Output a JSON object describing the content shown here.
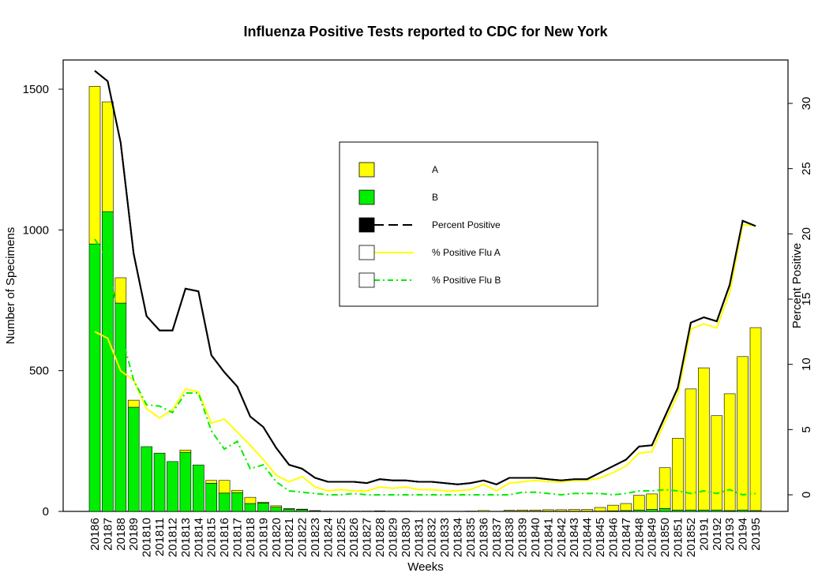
{
  "chart_data": {
    "type": "bar",
    "title": "Influenza Positive Tests reported to CDC for New York",
    "xlabel": "Weeks",
    "ylabel": "Number of Specimens",
    "y2label": "Percent Positive",
    "ylim": [
      0,
      1600
    ],
    "y2lim": [
      0,
      32.5
    ],
    "yticks": [
      0,
      500,
      1000,
      1500
    ],
    "y2ticks": [
      0,
      5,
      10,
      15,
      20,
      25,
      30
    ],
    "stacked": true,
    "categories": [
      "20186",
      "20187",
      "20188",
      "20189",
      "201810",
      "201811",
      "201812",
      "201813",
      "201814",
      "201815",
      "201816",
      "201817",
      "201818",
      "201819",
      "201820",
      "201821",
      "201822",
      "201823",
      "201824",
      "201825",
      "201826",
      "201827",
      "201828",
      "201829",
      "201830",
      "201831",
      "201832",
      "201833",
      "201834",
      "201835",
      "201836",
      "201837",
      "201838",
      "201839",
      "201840",
      "201841",
      "201842",
      "201843",
      "201844",
      "201845",
      "201846",
      "201847",
      "201848",
      "201849",
      "201850",
      "201851",
      "201852",
      "20191",
      "20192",
      "20193",
      "20194",
      "20195"
    ],
    "series": [
      {
        "name": "B",
        "color": "#00EE00",
        "type": "bar",
        "values": [
          950,
          1065,
          740,
          370,
          230,
          207,
          177,
          210,
          165,
          100,
          65,
          67,
          28,
          30,
          15,
          8,
          6,
          2,
          1,
          1,
          1,
          1,
          1,
          1,
          0,
          0,
          0,
          0,
          0,
          0,
          0,
          0,
          1,
          1,
          1,
          1,
          1,
          1,
          1,
          1,
          2,
          3,
          5,
          7,
          10,
          5,
          5,
          5,
          5,
          3,
          5,
          3
        ]
      },
      {
        "name": "A",
        "color": "#FFFF00",
        "type": "bar",
        "values": [
          560,
          390,
          90,
          25,
          0,
          0,
          0,
          8,
          0,
          10,
          45,
          8,
          22,
          3,
          5,
          2,
          2,
          1,
          0,
          0,
          0,
          0,
          1,
          0,
          1,
          0,
          0,
          0,
          0,
          1,
          3,
          0,
          3,
          4,
          4,
          5,
          5,
          6,
          6,
          13,
          20,
          25,
          52,
          55,
          145,
          255,
          430,
          505,
          335,
          415,
          545,
          650
        ]
      },
      {
        "name": "Percent Positive",
        "color": "#000000",
        "type": "line",
        "dash": "solid",
        "values": [
          32.5,
          31.7,
          27.0,
          18.5,
          13.7,
          12.6,
          12.6,
          15.8,
          15.6,
          10.7,
          9.4,
          8.3,
          6.0,
          5.2,
          3.6,
          2.3,
          2.0,
          1.3,
          1.0,
          1.0,
          1.0,
          0.9,
          1.2,
          1.1,
          1.1,
          1.0,
          1.0,
          0.9,
          0.8,
          0.9,
          1.1,
          0.8,
          1.3,
          1.3,
          1.3,
          1.2,
          1.1,
          1.2,
          1.2,
          1.7,
          2.2,
          2.7,
          3.7,
          3.8,
          6.0,
          8.2,
          13.2,
          13.6,
          13.3,
          16.1,
          21.0,
          20.6
        ]
      },
      {
        "name": "% Positive Flu A",
        "color": "#FFFF00",
        "type": "line",
        "dash": "solid",
        "values": [
          12.5,
          12.0,
          9.5,
          8.8,
          6.6,
          5.9,
          6.5,
          8.1,
          7.9,
          5.5,
          5.8,
          4.8,
          3.8,
          2.7,
          1.5,
          1.0,
          1.4,
          0.6,
          0.3,
          0.4,
          0.3,
          0.3,
          0.6,
          0.5,
          0.6,
          0.4,
          0.4,
          0.3,
          0.3,
          0.4,
          0.8,
          0.3,
          0.9,
          1.0,
          1.1,
          1.0,
          1.0,
          1.1,
          1.1,
          1.3,
          1.7,
          2.2,
          3.2,
          3.3,
          5.6,
          7.7,
          12.7,
          13.1,
          12.8,
          15.5,
          20.7,
          20.6
        ]
      },
      {
        "name": "% Positive Flu B",
        "color": "#00EE00",
        "type": "line",
        "dash": "dashdot",
        "values": [
          19.6,
          18.0,
          12.5,
          8.8,
          6.9,
          6.8,
          6.3,
          7.8,
          7.8,
          4.9,
          3.5,
          4.1,
          2.0,
          2.3,
          1.0,
          0.3,
          0.2,
          0.1,
          0.0,
          0.0,
          0.1,
          0.0,
          0.0,
          0.0,
          0.0,
          0.0,
          0.0,
          0.0,
          0.0,
          0.0,
          0.0,
          0.0,
          0.0,
          0.2,
          0.2,
          0.1,
          0.0,
          0.1,
          0.1,
          0.1,
          0.0,
          0.1,
          0.3,
          0.3,
          0.4,
          0.3,
          0.1,
          0.3,
          0.1,
          0.4,
          0.0,
          0.1
        ]
      }
    ],
    "legend": {
      "placement": "top-center",
      "entries": [
        {
          "label": "A",
          "symbol": "box",
          "fill": "#FFFF00"
        },
        {
          "label": "B",
          "symbol": "box",
          "fill": "#00EE00"
        },
        {
          "label": "Percent Positive",
          "symbol": "box-line",
          "fill": "#000000",
          "line": "#000000",
          "dash": "dashed"
        },
        {
          "label": "% Positive Flu A",
          "symbol": "box-line",
          "fill": "#FFFFFF",
          "line": "#FFFF00",
          "dash": "solid"
        },
        {
          "label": "% Positive Flu B",
          "symbol": "box-line",
          "fill": "#FFFFFF",
          "line": "#00EE00",
          "dash": "dashdot"
        }
      ]
    }
  }
}
